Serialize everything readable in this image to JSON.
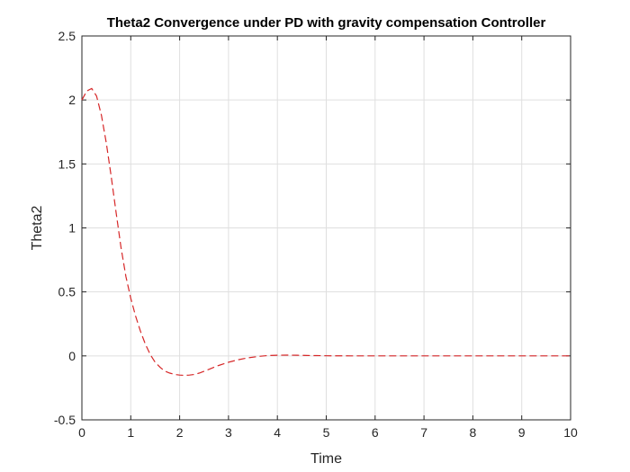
{
  "chart_data": {
    "type": "line",
    "title": "Theta2 Convergence under PD with gravity compensation Controller",
    "xlabel": "Time",
    "ylabel": "Theta2",
    "xlim": [
      0,
      10
    ],
    "ylim": [
      -0.5,
      2.5
    ],
    "xticks": [
      "0",
      "1",
      "2",
      "3",
      "4",
      "5",
      "6",
      "7",
      "8",
      "9",
      "10"
    ],
    "yticks": [
      "-0.5",
      "0",
      "0.5",
      "1",
      "1.5",
      "2",
      "2.5"
    ],
    "grid": true,
    "series": [
      {
        "style": "dashed",
        "color": "#d62728",
        "x": [
          0,
          0.1,
          0.2,
          0.3,
          0.4,
          0.5,
          0.6,
          0.7,
          0.8,
          0.9,
          1.0,
          1.1,
          1.2,
          1.3,
          1.4,
          1.5,
          1.6,
          1.7,
          1.8,
          1.9,
          2.0,
          2.1,
          2.2,
          2.3,
          2.4,
          2.5,
          2.6,
          2.7,
          2.8,
          2.9,
          3.0,
          3.2,
          3.4,
          3.6,
          3.8,
          4.0,
          4.2,
          4.4,
          4.6,
          4.8,
          5.0,
          5.5,
          6.0,
          6.5,
          7.0,
          7.5,
          8.0,
          8.5,
          9.0,
          9.5,
          10.0
        ],
        "y": [
          2.0,
          2.07,
          2.09,
          2.03,
          1.88,
          1.66,
          1.4,
          1.12,
          0.85,
          0.62,
          0.45,
          0.31,
          0.19,
          0.09,
          0.01,
          -0.05,
          -0.09,
          -0.12,
          -0.135,
          -0.145,
          -0.15,
          -0.152,
          -0.15,
          -0.145,
          -0.135,
          -0.12,
          -0.105,
          -0.09,
          -0.075,
          -0.062,
          -0.05,
          -0.03,
          -0.015,
          -0.005,
          0.002,
          0.005,
          0.006,
          0.005,
          0.003,
          0.002,
          0.001,
          0.0,
          0.0,
          0.0,
          0.0,
          0.0,
          0.0,
          0.0,
          0.0,
          0.0,
          0.0
        ]
      }
    ]
  }
}
